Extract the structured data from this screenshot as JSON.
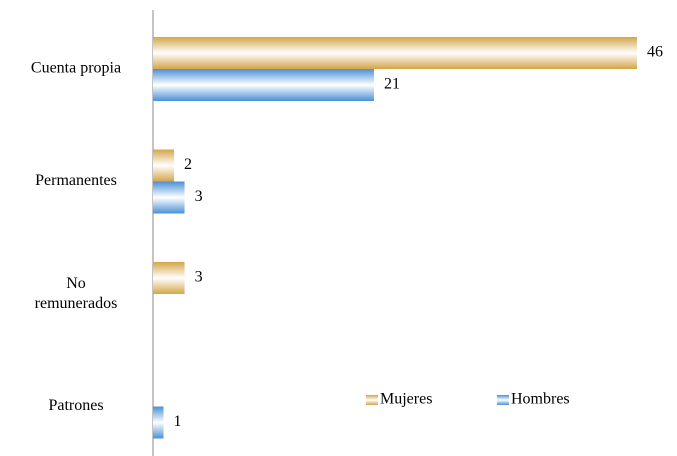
{
  "chart_data": {
    "type": "bar",
    "orientation": "horizontal",
    "categories": [
      "Cuenta propia",
      "Permanentes",
      "No\nremunerados",
      "Patrones"
    ],
    "series": [
      {
        "name": "Mujeres",
        "color": "#d4a548",
        "values": [
          46,
          2,
          3,
          null
        ]
      },
      {
        "name": "Hombres",
        "color": "#4a90d6",
        "values": [
          21,
          3,
          null,
          1
        ]
      }
    ],
    "legend": "bottom-right"
  }
}
